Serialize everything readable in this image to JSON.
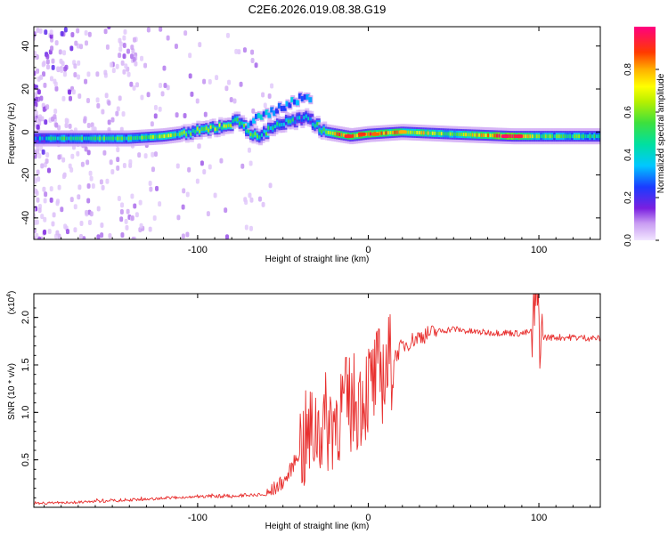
{
  "chart_data": [
    {
      "type": "heatmap",
      "title": "C2E6.2026.019.08.38.G19",
      "xlabel": "Height of straight line (km)",
      "ylabel": "Frequency (Hz)",
      "xlim": [
        -196,
        136
      ],
      "ylim": [
        -50,
        49
      ],
      "x_ticks": [
        -100,
        0,
        100
      ],
      "y_ticks": [
        -40,
        -20,
        0,
        20,
        40
      ],
      "colorbar": {
        "label": "Normalized spectral amplitude",
        "range": [
          0,
          1
        ],
        "ticks": [
          "0.0",
          "0.2",
          "0.4",
          "0.6",
          "0.8"
        ],
        "tick_values": [
          0.0,
          0.2,
          0.4,
          0.6,
          0.8
        ]
      },
      "ridge": [
        {
          "x": -196,
          "f": -3,
          "amp": 0.35
        },
        {
          "x": -180,
          "f": -3,
          "amp": 0.45
        },
        {
          "x": -160,
          "f": -3,
          "amp": 0.55
        },
        {
          "x": -140,
          "f": -3,
          "amp": 0.5
        },
        {
          "x": -120,
          "f": -2,
          "amp": 0.6
        },
        {
          "x": -100,
          "f": 0,
          "amp": 0.55
        },
        {
          "x": -85,
          "f": 3,
          "amp": 0.6
        },
        {
          "x": -75,
          "f": 5,
          "amp": 0.55
        },
        {
          "x": -65,
          "f": -3,
          "amp": 0.5
        },
        {
          "x": -55,
          "f": 3,
          "amp": 0.45
        },
        {
          "x": -45,
          "f": 5,
          "amp": 0.4
        },
        {
          "x": -35,
          "f": 6,
          "amp": 0.35
        },
        {
          "x": -25,
          "f": 0,
          "amp": 0.7
        },
        {
          "x": -10,
          "f": -2,
          "amp": 0.9
        },
        {
          "x": 0,
          "f": -1,
          "amp": 0.85
        },
        {
          "x": 20,
          "f": 0,
          "amp": 0.75
        },
        {
          "x": 50,
          "f": -1,
          "amp": 0.6
        },
        {
          "x": 85,
          "f": -2,
          "amp": 0.95
        },
        {
          "x": 100,
          "f": -2,
          "amp": 0.55
        },
        {
          "x": 136,
          "f": -2,
          "amp": 0.5
        }
      ]
    },
    {
      "type": "line",
      "xlabel": "Height of straight line (km)",
      "ylabel": "SNR (10 * v/v)",
      "y_scale_label": "(x10",
      "y_scale_exponent": "4",
      "y_multiplier": 10000,
      "xlim": [
        -196,
        136
      ],
      "ylim": [
        0,
        2.25
      ],
      "x_ticks": [
        -100,
        0,
        100
      ],
      "y_ticks": [
        0.5,
        1.0,
        1.5,
        2.0
      ],
      "y_tick_labels": [
        "0.5",
        "1.0",
        "1.5",
        "2.0"
      ],
      "color": "#e8302f",
      "series": [
        {
          "name": "SNR",
          "x": [
            -196,
            -170,
            -140,
            -120,
            -100,
            -80,
            -60,
            -48,
            -40,
            -30,
            -22,
            -15,
            -8,
            0,
            10,
            20,
            30,
            40,
            50,
            60,
            70,
            80,
            90,
            96,
            99,
            101,
            104,
            110,
            120,
            136
          ],
          "y": [
            0.03,
            0.04,
            0.06,
            0.08,
            0.1,
            0.1,
            0.12,
            0.3,
            0.6,
            0.85,
            0.9,
            1.05,
            1.1,
            1.25,
            1.45,
            1.7,
            1.8,
            1.85,
            1.88,
            1.85,
            1.84,
            1.84,
            1.83,
            1.85,
            2.2,
            1.8,
            1.79,
            1.79,
            1.79,
            1.78
          ]
        }
      ]
    }
  ]
}
